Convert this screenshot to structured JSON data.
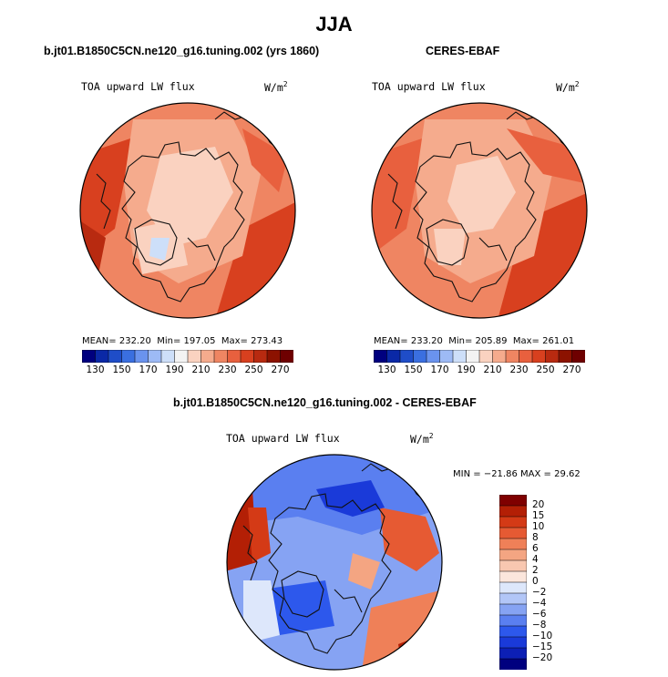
{
  "page": {
    "title": "JJA"
  },
  "panels": [
    {
      "title": "b.jt01.B1850C5CN.ne120_g16.tuning.002 (yrs 1860)",
      "variable": "TOA upward LW flux",
      "units": "W/m",
      "units_exp": "2",
      "stats": {
        "mean_label": "MEAN=",
        "mean": "232.20",
        "min_label": "Min=",
        "min": "197.05",
        "max_label": "Max=",
        "max": "273.43"
      }
    },
    {
      "title": "CERES-EBAF",
      "variable": "TOA upward LW flux",
      "units": "W/m",
      "units_exp": "2",
      "stats": {
        "mean_label": "MEAN=",
        "mean": "233.20",
        "min_label": "Min=",
        "min": "205.89",
        "max_label": "Max=",
        "max": "261.01"
      }
    },
    {
      "title": "b.jt01.B1850C5CN.ne120_g16.tuning.002 - CERES-EBAF",
      "variable": "TOA upward LW flux",
      "units": "W/m",
      "units_exp": "2",
      "stats": {
        "min_label": "MIN =",
        "min": "−21.86",
        "max_label": "MAX =",
        "max": "29.62"
      }
    }
  ],
  "chart_data": [
    {
      "type": "heatmap",
      "projection": "north-polar-stereographic",
      "title": "b.jt01.B1850C5CN.ne120_g16.tuning.002 (yrs 1860)",
      "variable": "TOA upward LW flux",
      "colorbar": {
        "orientation": "horizontal",
        "levels": [
          130,
          140,
          150,
          160,
          170,
          180,
          190,
          200,
          210,
          220,
          230,
          240,
          250,
          260,
          270
        ],
        "tick_labels": [
          "130",
          "150",
          "170",
          "190",
          "210",
          "230",
          "250",
          "270"
        ],
        "colors": [
          "#00007f",
          "#0a28a6",
          "#1f4dc8",
          "#3a6fe0",
          "#6a93ee",
          "#9dbaf5",
          "#cddff9",
          "#f3f3f3",
          "#fad2c0",
          "#f5ab8d",
          "#ef8562",
          "#e8603e",
          "#d8401f",
          "#b82a10",
          "#8c1200",
          "#6e0000"
        ]
      },
      "stats": {
        "mean": 232.2,
        "min": 197.05,
        "max": 273.43
      }
    },
    {
      "type": "heatmap",
      "projection": "north-polar-stereographic",
      "title": "CERES-EBAF",
      "variable": "TOA upward LW flux",
      "colorbar": {
        "orientation": "horizontal",
        "levels": [
          130,
          140,
          150,
          160,
          170,
          180,
          190,
          200,
          210,
          220,
          230,
          240,
          250,
          260,
          270
        ],
        "tick_labels": [
          "130",
          "150",
          "170",
          "190",
          "210",
          "230",
          "250",
          "270"
        ],
        "colors": [
          "#00007f",
          "#0a28a6",
          "#1f4dc8",
          "#3a6fe0",
          "#6a93ee",
          "#9dbaf5",
          "#cddff9",
          "#f3f3f3",
          "#fad2c0",
          "#f5ab8d",
          "#ef8562",
          "#e8603e",
          "#d8401f",
          "#b82a10",
          "#8c1200",
          "#6e0000"
        ]
      },
      "stats": {
        "mean": 233.2,
        "min": 205.89,
        "max": 261.01
      }
    },
    {
      "type": "heatmap",
      "projection": "north-polar-stereographic",
      "title": "b.jt01.B1850C5CN.ne120_g16.tuning.002 - CERES-EBAF",
      "variable": "TOA upward LW flux",
      "colorbar": {
        "orientation": "vertical",
        "levels": [
          -20,
          -15,
          -10,
          -8,
          -6,
          -4,
          -2,
          0,
          2,
          4,
          6,
          8,
          10,
          15,
          20
        ],
        "tick_labels": [
          "20",
          "15",
          "10",
          "8",
          "6",
          "4",
          "2",
          "0",
          "−2",
          "−4",
          "−6",
          "−8",
          "−10",
          "−15",
          "−20"
        ],
        "colors": [
          "#00007f",
          "#0c1fb5",
          "#1a3ad9",
          "#2d58ec",
          "#5a7ff0",
          "#86a3f3",
          "#b2c6f7",
          "#dde7fb",
          "#fbe6dc",
          "#f8c7b0",
          "#f4a582",
          "#ef8058",
          "#e65a33",
          "#d43a16",
          "#b31f05",
          "#7f0000"
        ]
      },
      "stats": {
        "min": -21.86,
        "max": 29.62
      }
    }
  ]
}
